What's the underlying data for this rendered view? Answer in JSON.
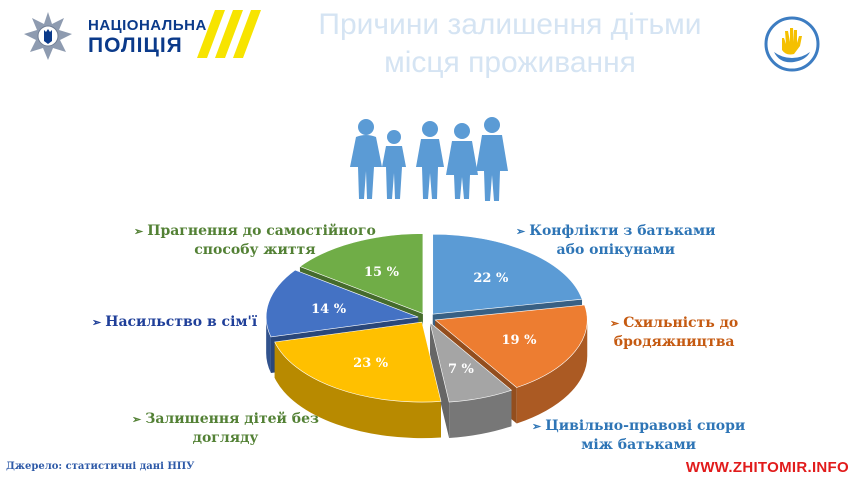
{
  "header": {
    "logo_line1": "НАЦІОНАЛЬНА",
    "logo_line2": "ПОЛІЦІЯ",
    "title_line1": "Причини залишення дітьми",
    "title_line2": "місця проживання"
  },
  "chart_data": {
    "type": "pie",
    "style": "3d-exploded",
    "title": "Причини залишення дітьми місця проживання",
    "series": [
      {
        "name": "Конфлікти з батьками або опікунами",
        "label_lines": [
          "Конфлікти з батьками",
          "або опікунами"
        ],
        "value": 22,
        "value_label": "22 %",
        "color": "#5b9bd5"
      },
      {
        "name": "Схильність до бродяжництва",
        "label_lines": [
          "Схильність до",
          "бродяжництва"
        ],
        "value": 19,
        "value_label": "19 %",
        "color": "#ed7d31"
      },
      {
        "name": "Цивільно-правові спори між батьками",
        "label_lines": [
          "Цивільно-правові спори",
          "між батьками"
        ],
        "value": 7,
        "value_label": "7 %",
        "color": "#a5a5a5"
      },
      {
        "name": "Залишення дітей без догляду",
        "label_lines": [
          "Залишення дітей без",
          "догляду"
        ],
        "value": 23,
        "value_label": "23 %",
        "color": "#ffc000"
      },
      {
        "name": "Насильство в сім'ї",
        "label_lines": [
          "Насильство в сім'ї"
        ],
        "value": 14,
        "value_label": "14 %",
        "color": "#4472c4"
      },
      {
        "name": "Прагнення до самостійного способу життя",
        "label_lines": [
          "Прагнення до самостійного",
          "способу життя"
        ],
        "value": 15,
        "value_label": "15 %",
        "color": "#70ad47"
      }
    ],
    "label_colors": [
      "#2e75b6",
      "#c55a11",
      "#2e75b6",
      "#538135",
      "#1f3f99",
      "#538135"
    ]
  },
  "footer": {
    "source": "Джерело: статистичні дані НПУ",
    "watermark": "WWW.ZHITOMIR.INFO"
  },
  "icons": [
    "police-star-emblem-icon",
    "yellow-stripes-icon",
    "children-silhouette-icon",
    "hands-care-logo-icon",
    "arrow-bullet-icon"
  ]
}
